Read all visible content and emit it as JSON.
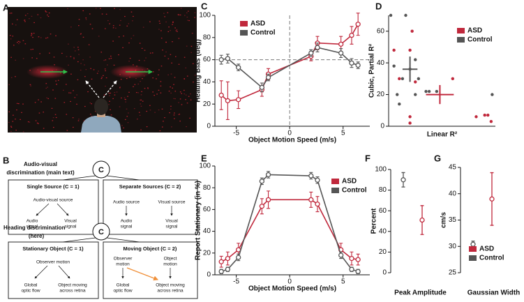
{
  "panel_labels": [
    "A",
    "B",
    "C",
    "D",
    "E",
    "F",
    "G"
  ],
  "diagram": {
    "audio_visual": {
      "title": [
        "Audio-visual",
        "discrimination (main text)"
      ],
      "node": "C",
      "single": {
        "title": "Single Source (C = 1)",
        "source": "Audio-visual source",
        "outputs": [
          [
            "Audio",
            "signal"
          ],
          [
            "Visual",
            "signal"
          ]
        ]
      },
      "separate": {
        "title": "Separate Sources (C = 2)",
        "sources": [
          "Audio source",
          "Visual source"
        ],
        "outputs": [
          [
            "Audio",
            "signal"
          ],
          [
            "Visual",
            "signal"
          ]
        ]
      }
    },
    "heading": {
      "title": [
        "Heading discrimination",
        "(here)"
      ],
      "node": "C",
      "stationary": {
        "title": "Stationary Object (C = 1)",
        "source": "Observer motion",
        "outputs": [
          [
            "Global",
            "optic flow"
          ],
          [
            "Object moving",
            "across retina"
          ]
        ]
      },
      "moving": {
        "title": "Moving Object (C = 2)",
        "sources": [
          [
            "Observer",
            "motion"
          ],
          [
            "Object",
            "motion"
          ]
        ],
        "outputs": [
          [
            "Global",
            "optic flow"
          ],
          [
            "Object moving",
            "across retina"
          ]
        ]
      }
    }
  },
  "chart_data": [
    {
      "type": "line",
      "xlabel": "Object Motion Speed (m/s)",
      "ylabel": "Heading Bias (deg)",
      "x": [
        -6.4,
        -5.8,
        -4.8,
        -2.6,
        -2,
        2,
        2.6,
        4.8,
        5.8,
        6.4
      ],
      "xlim": [
        -7,
        7.5
      ],
      "xticks": [
        -5,
        0,
        5
      ],
      "ylim": [
        0,
        100
      ],
      "yticks": [
        0,
        20,
        40,
        60,
        80,
        100
      ],
      "reference_lines": {
        "x": 0,
        "y": 60
      },
      "legend": "upper left",
      "series": [
        {
          "name": "ASD",
          "color": "#c0283c",
          "values": [
            28,
            23,
            24,
            33,
            47,
            63,
            75,
            74,
            82,
            92
          ],
          "errors": [
            13,
            17,
            8,
            6,
            5,
            4,
            6,
            7,
            8,
            10
          ]
        },
        {
          "name": "Control",
          "color": "#555555",
          "values": [
            60,
            61,
            53,
            35,
            44,
            66,
            71,
            66,
            57,
            55
          ],
          "errors": [
            4,
            4,
            3,
            4,
            3,
            3,
            4,
            4,
            4,
            3
          ]
        }
      ]
    },
    {
      "type": "scatter",
      "xlabel": "Linear R²",
      "ylabel": "Cubic, Partial R²",
      "xlim": [
        0,
        1
      ],
      "ylim": [
        0,
        70
      ],
      "yticks": [
        0,
        20,
        40,
        60
      ],
      "legend": "upper right",
      "series": [
        {
          "name": "ASD",
          "color": "#c0283c",
          "x": [
            0.05,
            0.1,
            0.22,
            0.2,
            0.25,
            0.2,
            0.2,
            0.6,
            0.82,
            0.9,
            0.93,
            0.96
          ],
          "values": [
            48,
            30,
            60,
            48,
            28,
            2,
            6,
            30,
            6,
            7,
            7,
            3
          ],
          "mean": {
            "x": 0.48,
            "y": 20,
            "xerr": 0.13,
            "yerr": 6
          }
        },
        {
          "name": "Control",
          "color": "#555555",
          "x": [
            0.02,
            0.05,
            0.08,
            0.1,
            0.13,
            0.16,
            0.2,
            0.25,
            0.28,
            0.35,
            0.38,
            0.45,
            0.97,
            0.25
          ],
          "values": [
            70,
            38,
            20,
            14,
            30,
            70,
            36,
            20,
            30,
            22,
            22,
            22,
            20,
            42
          ],
          "mean": {
            "x": 0.2,
            "y": 36,
            "xerr": 0.07,
            "yerr": 8
          }
        }
      ]
    },
    {
      "type": "line",
      "xlabel": "Object Motion Speed (m/s)",
      "ylabel": "Report Stationary (in %)",
      "x": [
        -6.4,
        -5.8,
        -4.8,
        -2.6,
        -2,
        2,
        2.6,
        4.8,
        5.8,
        6.4
      ],
      "xlim": [
        -7,
        7.5
      ],
      "xticks": [
        -5,
        0,
        5
      ],
      "ylim": [
        0,
        100
      ],
      "yticks": [
        0,
        20,
        40,
        60,
        80,
        100
      ],
      "legend": "upper right",
      "series": [
        {
          "name": "ASD",
          "color": "#c0283c",
          "values": [
            12,
            15,
            23,
            63,
            69,
            69,
            65,
            23,
            15,
            14
          ],
          "errors": [
            5,
            6,
            6,
            7,
            8,
            7,
            7,
            6,
            6,
            5
          ]
        },
        {
          "name": "Control",
          "color": "#555555",
          "values": [
            3,
            5,
            16,
            86,
            92,
            91,
            87,
            18,
            5,
            3
          ],
          "errors": [
            2,
            2,
            3,
            3,
            3,
            3,
            3,
            3,
            2,
            2
          ]
        }
      ]
    },
    {
      "type": "errorbar",
      "xlabel": "Peak Amplitude",
      "ylabel": "Percent",
      "ylim": [
        0,
        100
      ],
      "yticks": [
        0,
        20,
        40,
        60,
        80,
        100
      ],
      "series": [
        {
          "name": "ASD",
          "color": "#c0283c",
          "values": [
            51
          ],
          "errors": [
            14
          ]
        },
        {
          "name": "Control",
          "color": "#555555",
          "values": [
            90
          ],
          "errors": [
            7
          ]
        }
      ]
    },
    {
      "type": "errorbar",
      "xlabel": "Gaussian Width",
      "ylabel": "cm/s",
      "ylim": [
        25,
        45
      ],
      "yticks": [
        25,
        30,
        35,
        40,
        45
      ],
      "legend": "lower left",
      "series": [
        {
          "name": "ASD",
          "color": "#c0283c",
          "values": [
            39
          ],
          "errors": [
            5
          ]
        },
        {
          "name": "Control",
          "color": "#555555",
          "values": [
            30.4
          ],
          "errors": [
            0.6
          ]
        }
      ]
    }
  ]
}
